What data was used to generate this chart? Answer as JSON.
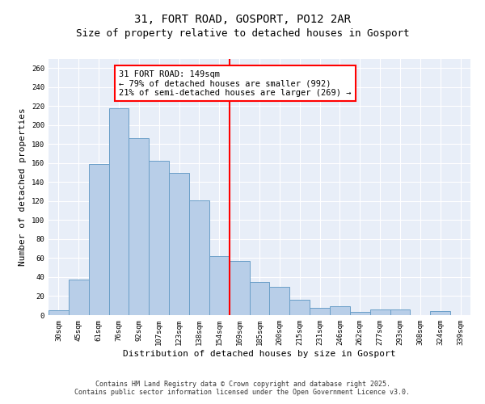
{
  "title": "31, FORT ROAD, GOSPORT, PO12 2AR",
  "subtitle": "Size of property relative to detached houses in Gosport",
  "xlabel": "Distribution of detached houses by size in Gosport",
  "ylabel": "Number of detached properties",
  "bar_labels": [
    "30sqm",
    "45sqm",
    "61sqm",
    "76sqm",
    "92sqm",
    "107sqm",
    "123sqm",
    "138sqm",
    "154sqm",
    "169sqm",
    "185sqm",
    "200sqm",
    "215sqm",
    "231sqm",
    "246sqm",
    "262sqm",
    "277sqm",
    "293sqm",
    "308sqm",
    "324sqm",
    "339sqm"
  ],
  "bar_values": [
    5,
    37,
    159,
    218,
    186,
    162,
    150,
    121,
    62,
    57,
    35,
    30,
    16,
    8,
    9,
    3,
    6,
    6,
    0,
    4,
    0
  ],
  "bar_color": "#B8CEE8",
  "bar_edge_color": "#6A9FC8",
  "vline_x": 8.5,
  "vline_color": "red",
  "annotation_text": "31 FORT ROAD: 149sqm\n← 79% of detached houses are smaller (992)\n21% of semi-detached houses are larger (269) →",
  "annotation_box_color": "white",
  "annotation_box_edge": "red",
  "ylim": [
    0,
    270
  ],
  "yticks": [
    0,
    20,
    40,
    60,
    80,
    100,
    120,
    140,
    160,
    180,
    200,
    220,
    240,
    260
  ],
  "background_color": "#E8EEF8",
  "footer_line1": "Contains HM Land Registry data © Crown copyright and database right 2025.",
  "footer_line2": "Contains public sector information licensed under the Open Government Licence v3.0.",
  "title_fontsize": 10,
  "subtitle_fontsize": 9,
  "xlabel_fontsize": 8,
  "ylabel_fontsize": 8,
  "tick_fontsize": 6.5,
  "annotation_fontsize": 7.5,
  "footer_fontsize": 6
}
